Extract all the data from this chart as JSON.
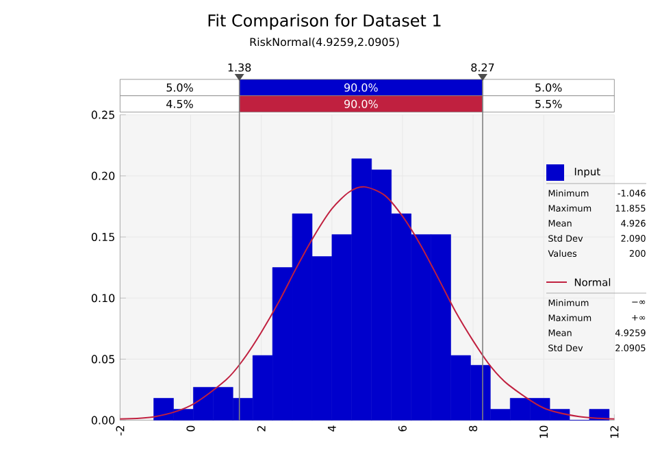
{
  "chart_data": {
    "type": "histogram",
    "title": "Fit Comparison for Dataset 1",
    "subtitle": "RiskNormal(4.9259,2.0905)",
    "series": [
      {
        "name": "Input",
        "color": "#0000cc",
        "bins": [
          -1.046,
          -0.485,
          0.076,
          0.637,
          1.198,
          1.759,
          2.319,
          2.88,
          3.441,
          4.002,
          4.563,
          5.124,
          5.685,
          6.246,
          6.807,
          7.368,
          7.929,
          8.489,
          9.05,
          9.611,
          10.172,
          10.733,
          11.294,
          11.855
        ],
        "values": [
          0.018,
          0.009,
          0.027,
          0.027,
          0.018,
          0.053,
          0.125,
          0.169,
          0.134,
          0.152,
          0.214,
          0.205,
          0.169,
          0.152,
          0.152,
          0.053,
          0.045,
          0.009,
          0.018,
          0.018,
          0.009,
          0,
          0.009
        ]
      },
      {
        "name": "Normal",
        "type": "line",
        "color": "#c0203f",
        "x": [
          -2,
          -1,
          0,
          1,
          1.5,
          2,
          2.5,
          3,
          3.5,
          4,
          4.5,
          4.93,
          5.5,
          6,
          6.5,
          7,
          7.5,
          8,
          8.5,
          9,
          10,
          11,
          12
        ],
        "values": [
          0.001,
          0.003,
          0.012,
          0.033,
          0.05,
          0.072,
          0.097,
          0.125,
          0.151,
          0.173,
          0.187,
          0.191,
          0.184,
          0.167,
          0.144,
          0.117,
          0.089,
          0.065,
          0.044,
          0.029,
          0.01,
          0.003,
          0.001
        ]
      }
    ],
    "xlim": [
      -2,
      12
    ],
    "xticks": [
      -2,
      0,
      2,
      4,
      6,
      8,
      10,
      12
    ],
    "ylim": [
      0,
      0.25
    ],
    "yticks": [
      {
        "value": 0,
        "label": "0.00"
      },
      {
        "value": 0.05,
        "label": "0.05"
      },
      {
        "value": 0.1,
        "label": "0.10"
      },
      {
        "value": 0.15,
        "label": "0.15"
      },
      {
        "value": 0.2,
        "label": "0.20"
      },
      {
        "value": 0.25,
        "label": "0.25"
      }
    ],
    "ref_lines": [
      {
        "axis": "x",
        "value": 1.38,
        "label": "1.38",
        "color": "#808080"
      },
      {
        "axis": "x",
        "value": 8.27,
        "label": "8.27",
        "color": "#808080"
      }
    ],
    "annotations": [
      "5.0%",
      "90.0%",
      "5.0%",
      "4.5%",
      "90.0%",
      "5.5%",
      "Minimum",
      "-1.046",
      "Maximum",
      "11.855",
      "Mean",
      "4.926",
      "Std Dev",
      "2.090",
      "Values",
      "200",
      "Minimum",
      "−∞",
      "Maximum",
      "+∞",
      "Mean",
      "4.9259",
      "Std Dev",
      "2.0905"
    ],
    "grid": true,
    "legend": "right"
  }
}
